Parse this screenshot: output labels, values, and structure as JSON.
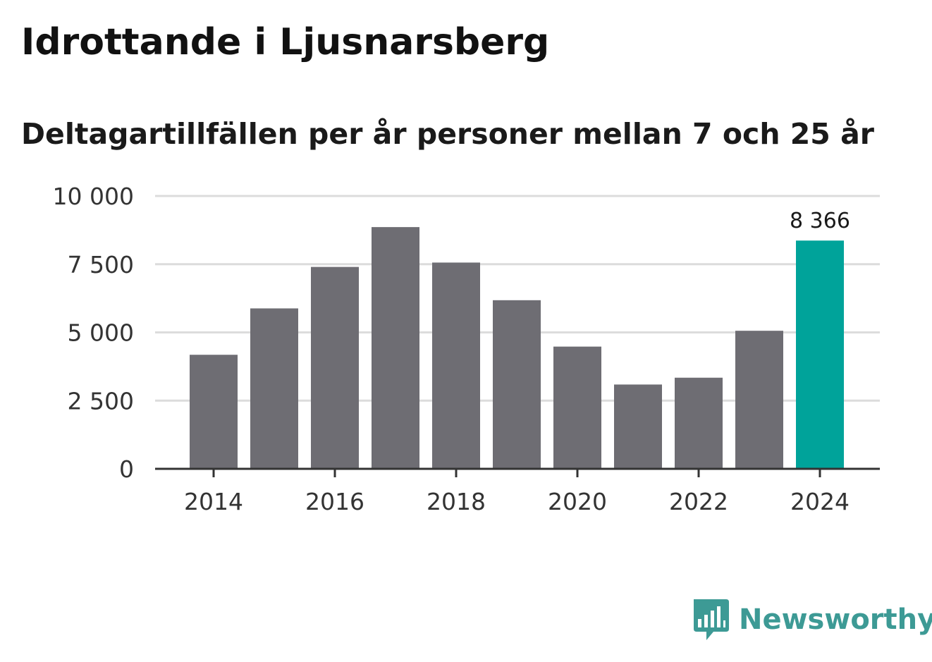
{
  "title": "Idrottande i Ljusnarsberg",
  "subtitle": "Deltagartillfällen per år personer mellan 7 och 25 år",
  "brand": {
    "name": "Newsworthy",
    "icon": "bar-chart-speech-icon",
    "color": "#3d9a95"
  },
  "chart_data": {
    "type": "bar",
    "title": "Idrottande i Ljusnarsberg",
    "subtitle": "Deltagartillfällen per år personer mellan 7 och 25 år",
    "xlabel": "",
    "ylabel": "",
    "categories": [
      2014,
      2015,
      2016,
      2017,
      2018,
      2019,
      2020,
      2021,
      2022,
      2023,
      2024
    ],
    "values": [
      4180,
      5880,
      7400,
      8860,
      7560,
      6180,
      4480,
      3090,
      3340,
      5060,
      8366
    ],
    "ylim": [
      0,
      10000
    ],
    "yticks": [
      0,
      2500,
      5000,
      7500,
      10000
    ],
    "ytick_labels": [
      "0",
      "2 500",
      "5 000",
      "7 500",
      "10 000"
    ],
    "xticks": [
      2014,
      2016,
      2018,
      2020,
      2022,
      2024
    ],
    "xtick_labels": [
      "2014",
      "2016",
      "2018",
      "2020",
      "2022",
      "2024"
    ],
    "highlight": {
      "category": 2024,
      "label": "8 366",
      "color": "#00a39a"
    },
    "bar_color": "#6e6d73",
    "grid": true
  }
}
